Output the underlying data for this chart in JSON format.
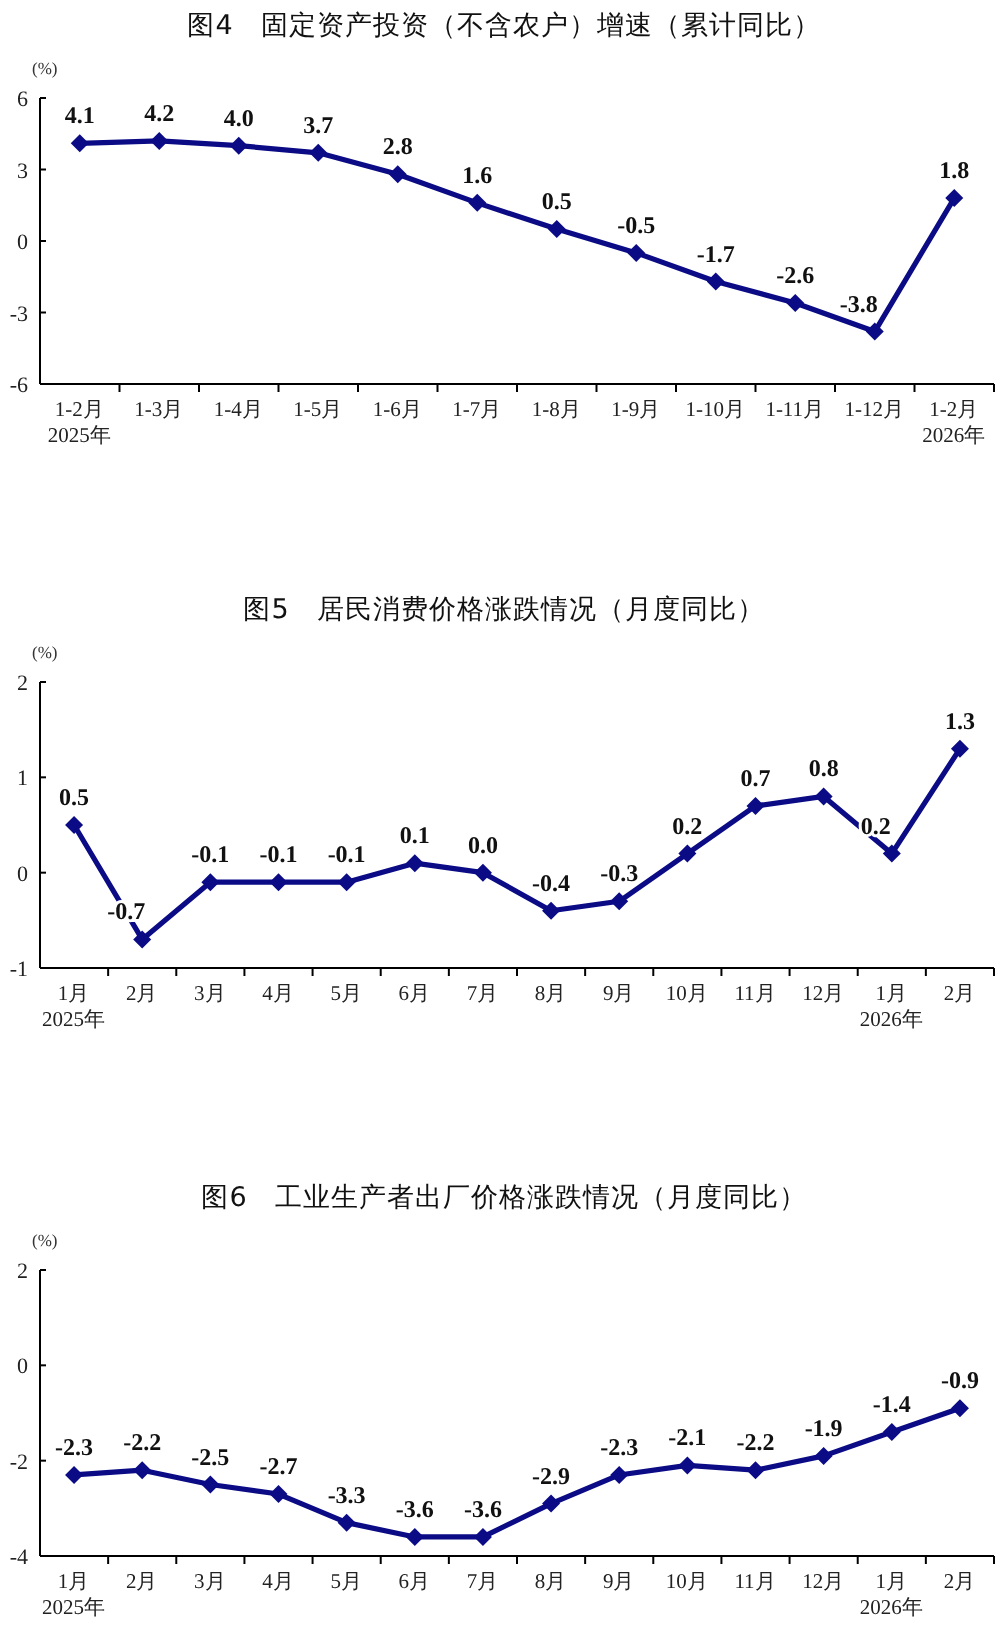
{
  "chart_data": [
    {
      "type": "line",
      "title": "图4　固定资产投资（不含农户）增速（累计同比）",
      "ylabel": "(%)",
      "categories": [
        "1-2月\n2025年",
        "1-3月",
        "1-4月",
        "1-5月",
        "1-6月",
        "1-7月",
        "1-8月",
        "1-9月",
        "1-10月",
        "1-11月",
        "1-12月",
        "1-2月\n2026年"
      ],
      "series": [
        {
          "color": "#0b0b86",
          "values": [
            4.1,
            4.2,
            4.0,
            3.7,
            2.8,
            1.6,
            0.5,
            -0.5,
            -1.7,
            -2.6,
            -3.8,
            1.8
          ],
          "value_labels": [
            "4.1",
            "4.2",
            "4.0",
            "3.7",
            "2.8",
            "1.6",
            "0.5",
            "-0.5",
            "-1.7",
            "-2.6",
            "-3.8",
            "1.8"
          ]
        }
      ],
      "ylim": [
        -6,
        6
      ],
      "yticks": [
        -6,
        -3,
        0,
        3,
        6
      ],
      "marker": "diamond",
      "line_style": "solid"
    },
    {
      "type": "line",
      "title": "图5　居民消费价格涨跌情况（月度同比）",
      "ylabel": "(%)",
      "categories": [
        "1月\n2025年",
        "2月",
        "3月",
        "4月",
        "5月",
        "6月",
        "7月",
        "8月",
        "9月",
        "10月",
        "11月",
        "12月",
        "1月\n2026年",
        "2月"
      ],
      "series": [
        {
          "color": "#0b0b86",
          "values": [
            0.5,
            -0.7,
            -0.1,
            -0.1,
            -0.1,
            0.1,
            0.0,
            -0.4,
            -0.3,
            0.2,
            0.7,
            0.8,
            0.2,
            1.3
          ],
          "value_labels": [
            "0.5",
            "-0.7",
            "-0.1",
            "-0.1",
            "-0.1",
            "0.1",
            "0.0",
            "-0.4",
            "-0.3",
            "0.2",
            "0.7",
            "0.8",
            "0.2",
            "1.3"
          ]
        }
      ],
      "ylim": [
        -1,
        2
      ],
      "yticks": [
        -1,
        0,
        1,
        2
      ],
      "marker": "diamond",
      "line_style": "solid"
    },
    {
      "type": "line",
      "title": "图6　工业生产者出厂价格涨跌情况（月度同比）",
      "ylabel": "(%)",
      "categories": [
        "1月\n2025年",
        "2月",
        "3月",
        "4月",
        "5月",
        "6月",
        "7月",
        "8月",
        "9月",
        "10月",
        "11月",
        "12月",
        "1月\n2026年",
        "2月"
      ],
      "series": [
        {
          "color": "#0b0b86",
          "values": [
            -2.3,
            -2.2,
            -2.5,
            -2.7,
            -3.3,
            -3.6,
            -3.6,
            -2.9,
            -2.3,
            -2.1,
            -2.2,
            -1.9,
            -1.4,
            -0.9
          ],
          "value_labels": [
            "-2.3",
            "-2.2",
            "-2.5",
            "-2.7",
            "-3.3",
            "-3.6",
            "-3.6",
            "-2.9",
            "-2.3",
            "-2.1",
            "-2.2",
            "-1.9",
            "-1.4",
            "-0.9"
          ]
        }
      ],
      "ylim": [
        -4,
        2
      ],
      "yticks": [
        -4,
        -2,
        0,
        2
      ],
      "marker": "diamond",
      "line_style": "solid"
    }
  ]
}
